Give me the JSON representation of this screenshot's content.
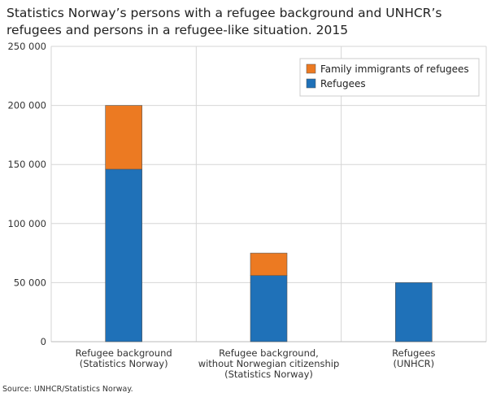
{
  "chart_data": {
    "type": "bar",
    "stacked": true,
    "title": "Statistics Norway’s persons with a refugee background and UNHCR’s refugees and persons in a refugee-like situation. 2015",
    "categories": [
      [
        "Refugee background",
        "(Statistics Norway)"
      ],
      [
        "Refugee background,",
        "without Norwegian citizenship",
        "(Statistics Norway)"
      ],
      [
        "Refugees",
        "(UNHCR)"
      ]
    ],
    "series": [
      {
        "name": "Refugees",
        "color": "#1f71b8",
        "values": [
          146000,
          56000,
          50000
        ]
      },
      {
        "name": "Family immigrants of refugees",
        "color": "#ec7a22",
        "values": [
          54000,
          19000,
          0
        ]
      }
    ],
    "ylim": [
      0,
      250000
    ],
    "yticks": [
      0,
      50000,
      100000,
      150000,
      200000,
      250000
    ],
    "ytick_labels": [
      "0",
      "50 000",
      "100 000",
      "150 000",
      "200 000",
      "250 000"
    ],
    "grid": true,
    "legend_placement": "top-right",
    "source": "Source: UNHCR/Statistics Norway."
  }
}
